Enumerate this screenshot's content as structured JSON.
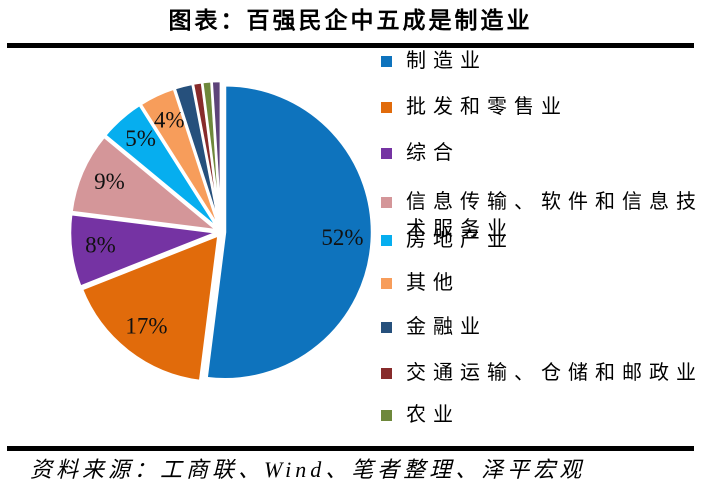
{
  "chart_data": {
    "type": "pie",
    "title": "图表：百强民企中五成是制造业",
    "source_note": "资料来源：工商联、Wind、笔者整理、泽平宏观",
    "legend_position": "right",
    "start_angle_deg": 0,
    "direction": "clockwise",
    "slices": [
      {
        "label": "制造业",
        "value": 52,
        "pct_label": "52%",
        "color": "#0E73BD"
      },
      {
        "label": "批发和零售业",
        "value": 17,
        "pct_label": "17%",
        "color": "#E16B0B"
      },
      {
        "label": "综合",
        "value": 8,
        "pct_label": "8%",
        "color": "#7533A3"
      },
      {
        "label": "信息传输、软件和信息技术服务业",
        "value": 9,
        "pct_label": "9%",
        "color": "#D49699"
      },
      {
        "label": "房地产业",
        "value": 5,
        "pct_label": "5%",
        "color": "#06AEEF"
      },
      {
        "label": "其他",
        "value": 4,
        "pct_label": "4%",
        "color": "#F79D5B"
      },
      {
        "label": "金融业",
        "value": 2,
        "pct_label": "",
        "color": "#26507C"
      },
      {
        "label": "交通运输、仓储和邮政业",
        "value": 1,
        "pct_label": "",
        "color": "#872B2B"
      },
      {
        "label": "农业",
        "value": 1,
        "pct_label": "",
        "color": "#6E883B"
      },
      {
        "label": "",
        "value": 1,
        "pct_label": "",
        "color": "#5D4379"
      }
    ]
  }
}
